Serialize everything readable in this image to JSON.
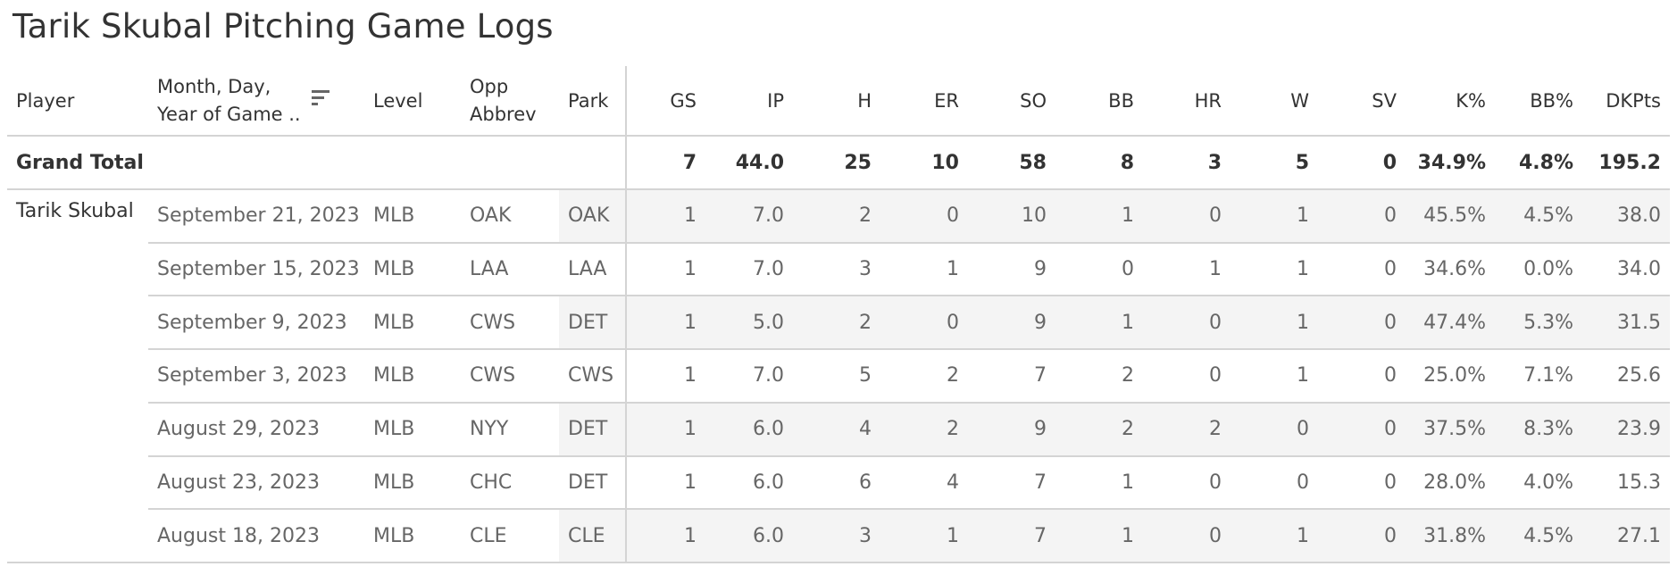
{
  "title": "Tarik Skubal Pitching Game Logs",
  "header": {
    "player": "Player",
    "date_line1": "Month, Day,",
    "date_line2": "Year of Game ..",
    "level": "Level",
    "opp_line1": "Opp",
    "opp_line2": "Abbrev",
    "park": "Park",
    "stats": [
      "GS",
      "IP",
      "H",
      "ER",
      "SO",
      "BB",
      "HR",
      "W",
      "SV",
      "K%",
      "BB%",
      "DKPts"
    ]
  },
  "sort_icon": "sort-descending-icon",
  "grand_total": {
    "label": "Grand Total",
    "values": [
      "7",
      "44.0",
      "25",
      "10",
      "58",
      "8",
      "3",
      "5",
      "0",
      "34.9%",
      "4.8%",
      "195.2"
    ]
  },
  "player_name": "Tarik Skubal",
  "rows": [
    {
      "date": "September 21, 2023",
      "level": "MLB",
      "opp": "OAK",
      "park": "OAK",
      "values": [
        "1",
        "7.0",
        "2",
        "0",
        "10",
        "1",
        "0",
        "1",
        "0",
        "45.5%",
        "4.5%",
        "38.0"
      ]
    },
    {
      "date": "September 15, 2023",
      "level": "MLB",
      "opp": "LAA",
      "park": "LAA",
      "values": [
        "1",
        "7.0",
        "3",
        "1",
        "9",
        "0",
        "1",
        "1",
        "0",
        "34.6%",
        "0.0%",
        "34.0"
      ]
    },
    {
      "date": "September 9, 2023",
      "level": "MLB",
      "opp": "CWS",
      "park": "DET",
      "values": [
        "1",
        "5.0",
        "2",
        "0",
        "9",
        "1",
        "0",
        "1",
        "0",
        "47.4%",
        "5.3%",
        "31.5"
      ]
    },
    {
      "date": "September 3, 2023",
      "level": "MLB",
      "opp": "CWS",
      "park": "CWS",
      "values": [
        "1",
        "7.0",
        "5",
        "2",
        "7",
        "2",
        "0",
        "1",
        "0",
        "25.0%",
        "7.1%",
        "25.6"
      ]
    },
    {
      "date": "August 29, 2023",
      "level": "MLB",
      "opp": "NYY",
      "park": "DET",
      "values": [
        "1",
        "6.0",
        "4",
        "2",
        "9",
        "2",
        "2",
        "0",
        "0",
        "37.5%",
        "8.3%",
        "23.9"
      ]
    },
    {
      "date": "August 23, 2023",
      "level": "MLB",
      "opp": "CHC",
      "park": "DET",
      "values": [
        "1",
        "6.0",
        "6",
        "4",
        "7",
        "1",
        "0",
        "0",
        "0",
        "28.0%",
        "4.0%",
        "15.3"
      ]
    },
    {
      "date": "August 18, 2023",
      "level": "MLB",
      "opp": "CLE",
      "park": "CLE",
      "values": [
        "1",
        "6.0",
        "3",
        "1",
        "7",
        "1",
        "0",
        "1",
        "0",
        "31.8%",
        "4.5%",
        "27.1"
      ]
    }
  ]
}
